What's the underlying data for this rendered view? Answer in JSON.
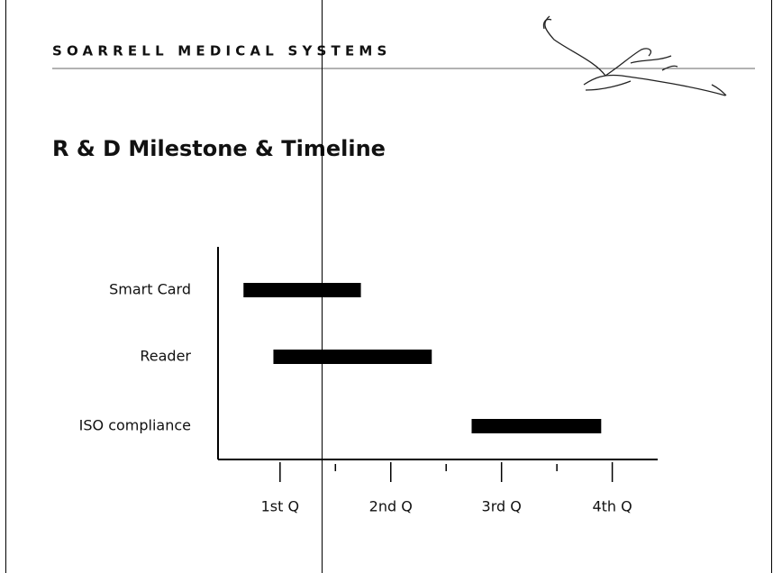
{
  "header": {
    "company": "SOARRELL MEDICAL SYSTEMS"
  },
  "chart_data": {
    "type": "gantt",
    "title": "R & D Milestone & Timeline",
    "categories": [
      "Smart Card",
      "Reader",
      "ISO compliance"
    ],
    "starts": [
      0.67,
      0.94,
      2.73
    ],
    "ends": [
      1.73,
      2.37,
      3.9
    ],
    "color": "#000000",
    "xlim": [
      0.44,
      4.41
    ],
    "xticks": [
      {
        "value": 1,
        "label": "1st Q"
      },
      {
        "value": 2,
        "label": "2nd Q"
      },
      {
        "value": 3,
        "label": "3rd Q"
      },
      {
        "value": 4,
        "label": "4th Q"
      }
    ],
    "minor_xticks": [
      1.5,
      2.5,
      3.5
    ]
  }
}
